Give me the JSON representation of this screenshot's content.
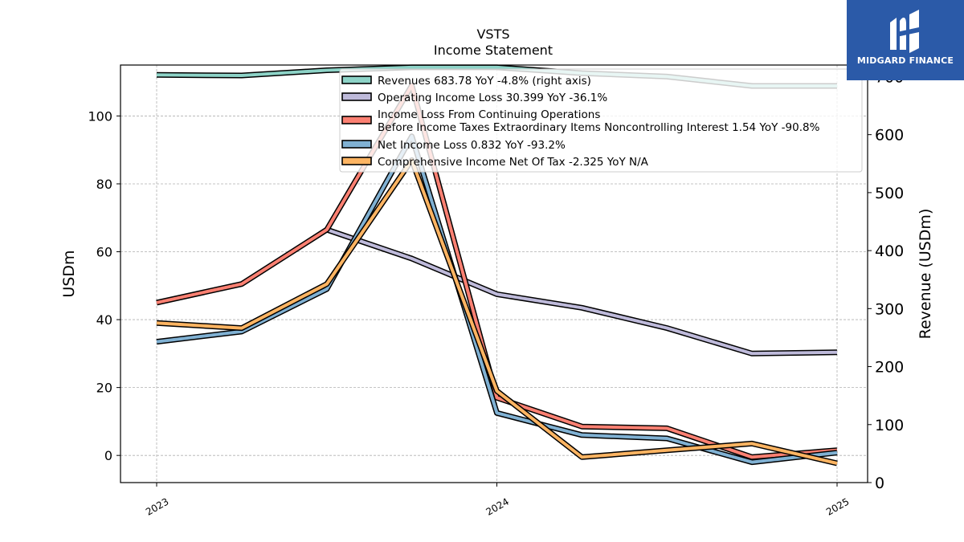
{
  "chart_data": {
    "type": "line",
    "title": "VSTS",
    "subtitle": "Income Statement",
    "ylabel_left": "USDm",
    "ylabel_right": "Revenue (USDm)",
    "x_ticks": [
      "2023",
      "2024",
      "2025"
    ],
    "ylim_left": [
      -8,
      115
    ],
    "yticks_left": [
      0,
      20,
      40,
      60,
      80,
      100
    ],
    "ylim_right": [
      0,
      720
    ],
    "yticks_right": [
      0,
      100,
      200,
      300,
      400,
      500,
      600,
      700
    ],
    "x": [
      "2023-01",
      "2023-04",
      "2023-07",
      "2023-10",
      "2024-01",
      "2024-04",
      "2024-07",
      "2024-10",
      "2025-01"
    ],
    "legend_location": "upper right",
    "series": [
      {
        "name": "Revenues  683.78 YoY -4.8% (right axis)",
        "axis": "right",
        "color": "#8dd3c7",
        "values": [
          703,
          702,
          711,
          716,
          716,
          706,
          700,
          684,
          684
        ]
      },
      {
        "name": "Operating Income Loss  30.399 YoY -36.1%",
        "axis": "left",
        "color": "#bebada",
        "values": null,
        "values_note": "",
        "data": [
          null,
          null,
          66.5,
          58,
          47.5,
          43.5,
          37.5,
          30,
          30.4
        ]
      },
      {
        "name": "Income Loss From Continuing Operations\nBefore Income Taxes Extraordinary Items Noncontrolling Interest  1.54 YoY -90.8%",
        "axis": "left",
        "color": "#fb8072",
        "data": [
          45,
          50.5,
          66.5,
          109,
          17,
          8.5,
          8,
          -0.5,
          1.54
        ]
      },
      {
        "name": "Net Income Loss  0.832 YoY -93.2%",
        "axis": "left",
        "color": "#80b1d3",
        "data": [
          33.5,
          36.5,
          49,
          94,
          12.5,
          6,
          5,
          -2,
          0.832
        ]
      },
      {
        "name": "Comprehensive Income Net Of Tax  -2.325 YoY N/A",
        "axis": "left",
        "color": "#fdb462",
        "data": [
          39,
          37.5,
          50.5,
          87,
          19,
          -0.5,
          1.5,
          3.5,
          -2.325
        ]
      }
    ]
  },
  "logo": {
    "text": "MIDGARD FINANCE"
  }
}
